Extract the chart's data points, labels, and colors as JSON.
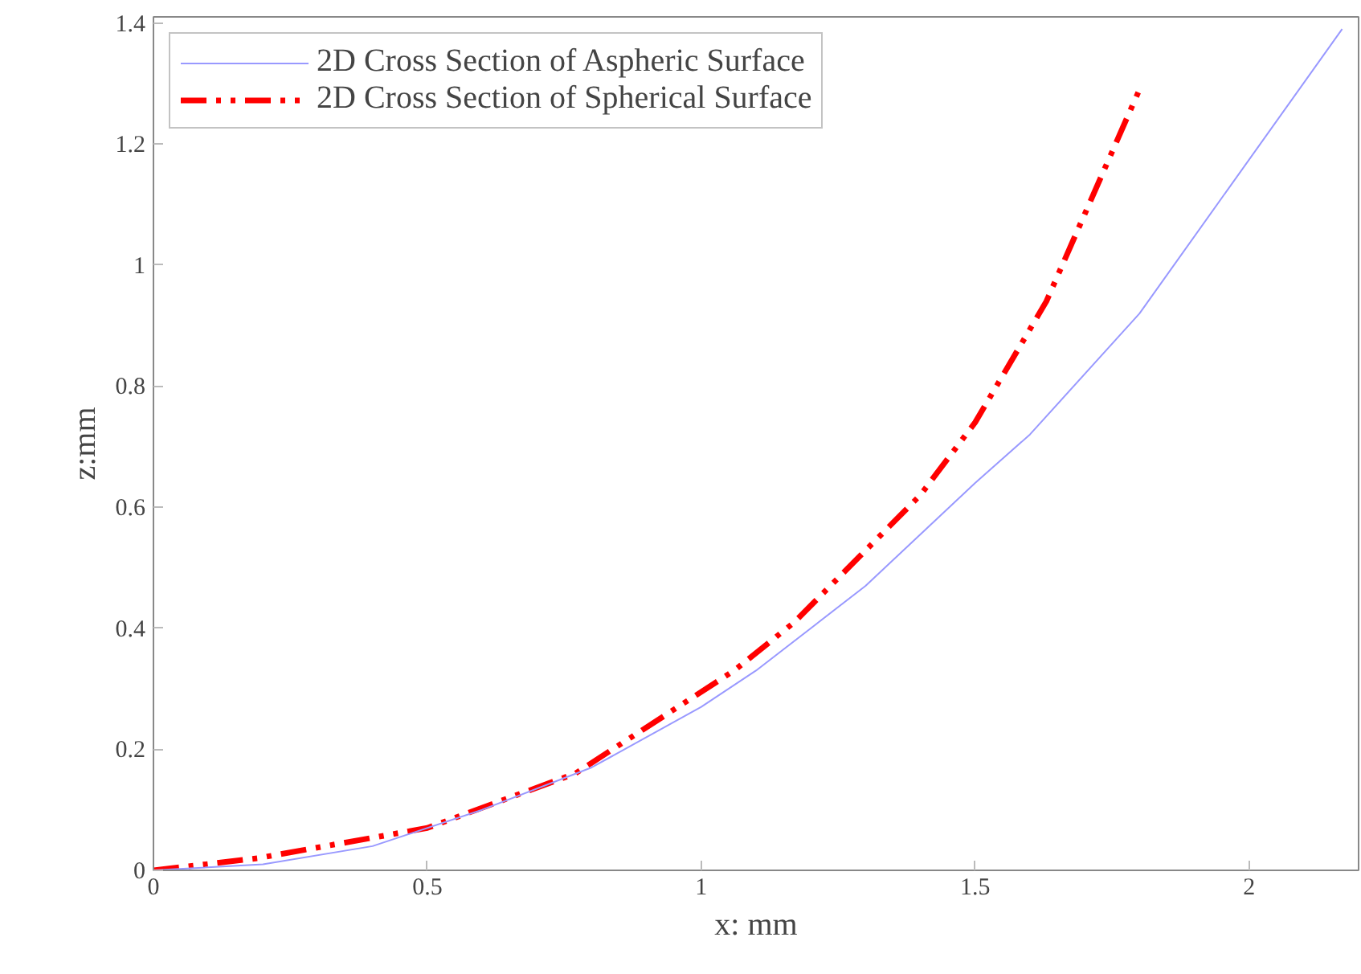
{
  "chart_data": {
    "type": "line",
    "xlabel": "x: mm",
    "ylabel": "z:mm",
    "xlim": [
      0,
      2.2
    ],
    "ylim": [
      0,
      1.41
    ],
    "xticks": [
      0,
      0.5,
      1,
      1.5,
      2
    ],
    "yticks": [
      0,
      0.2,
      0.4,
      0.6,
      0.8,
      1,
      1.2,
      1.4
    ],
    "grid": false,
    "legend": "top left",
    "series": [
      {
        "name": "2D Cross Section of Aspheric Surface",
        "color": "#9999ff",
        "line_style": "solid",
        "x": [
          0,
          0.2,
          0.4,
          0.6,
          0.8,
          1.0,
          1.1,
          1.3,
          1.5,
          1.6,
          1.8,
          2.17
        ],
        "values": [
          0,
          0.01,
          0.04,
          0.1,
          0.17,
          0.27,
          0.33,
          0.47,
          0.64,
          0.72,
          0.92,
          1.39
        ]
      },
      {
        "name": "2D Cross Section of Spherical Surface",
        "color": "#ff0000",
        "line_style": "dashed",
        "x": [
          0,
          0.19,
          0.5,
          0.77,
          1.06,
          1.17,
          1.4,
          1.5,
          1.63,
          1.8
        ],
        "values": [
          0,
          0.02,
          0.07,
          0.16,
          0.33,
          0.41,
          0.62,
          0.74,
          0.94,
          1.29
        ]
      }
    ]
  }
}
